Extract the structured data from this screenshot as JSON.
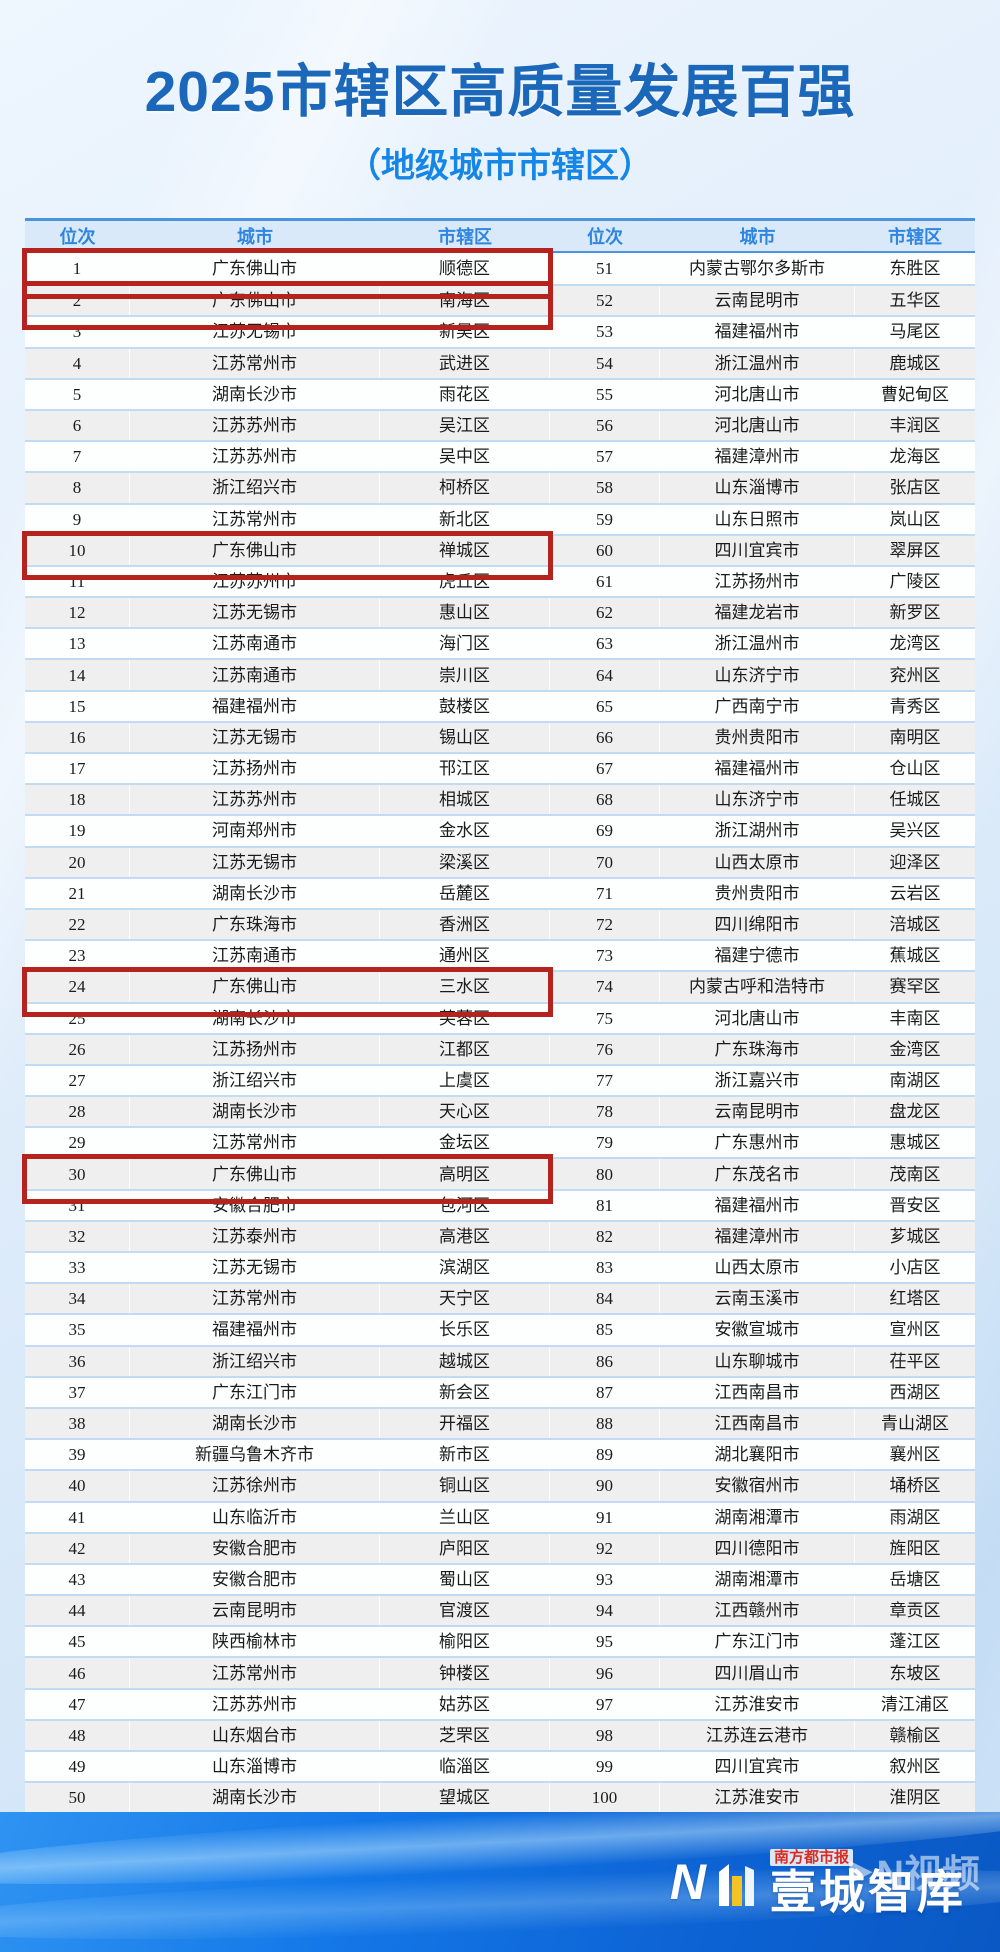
{
  "title": "2025市辖区高质量发展百强",
  "subtitle": "（地级城市市辖区）",
  "colors": {
    "title-blue": "#1b67ba",
    "subtitle-blue": "#1585e6",
    "header-bg": "#d9e9fa",
    "header-border": "#4a94dd",
    "header-text": "#2e86e0",
    "row-line": "#c2daf3",
    "row-alt": "#efefef",
    "accent-red": "#b4231d",
    "footer-blue": "#0d63d4",
    "brand-red": "#d92b1f"
  },
  "table": {
    "headers": [
      "位次",
      "城市",
      "市辖区",
      "位次",
      "城市",
      "市辖区"
    ],
    "rows": [
      {
        "rank": "1",
        "city": "广东佛山市",
        "district": "顺德区",
        "rank2": "51",
        "city2": "内蒙古鄂尔多斯市",
        "district2": "东胜区",
        "highlight": true
      },
      {
        "rank": "2",
        "city": "广东佛山市",
        "district": "南海区",
        "rank2": "52",
        "city2": "云南昆明市",
        "district2": "五华区",
        "highlight": true
      },
      {
        "rank": "3",
        "city": "江苏无锡市",
        "district": "新吴区",
        "rank2": "53",
        "city2": "福建福州市",
        "district2": "马尾区",
        "highlight": false
      },
      {
        "rank": "4",
        "city": "江苏常州市",
        "district": "武进区",
        "rank2": "54",
        "city2": "浙江温州市",
        "district2": "鹿城区",
        "highlight": false
      },
      {
        "rank": "5",
        "city": "湖南长沙市",
        "district": "雨花区",
        "rank2": "55",
        "city2": "河北唐山市",
        "district2": "曹妃甸区",
        "highlight": false
      },
      {
        "rank": "6",
        "city": "江苏苏州市",
        "district": "吴江区",
        "rank2": "56",
        "city2": "河北唐山市",
        "district2": "丰润区",
        "highlight": false
      },
      {
        "rank": "7",
        "city": "江苏苏州市",
        "district": "吴中区",
        "rank2": "57",
        "city2": "福建漳州市",
        "district2": "龙海区",
        "highlight": false
      },
      {
        "rank": "8",
        "city": "浙江绍兴市",
        "district": "柯桥区",
        "rank2": "58",
        "city2": "山东淄博市",
        "district2": "张店区",
        "highlight": false
      },
      {
        "rank": "9",
        "city": "江苏常州市",
        "district": "新北区",
        "rank2": "59",
        "city2": "山东日照市",
        "district2": "岚山区",
        "highlight": false
      },
      {
        "rank": "10",
        "city": "广东佛山市",
        "district": "禅城区",
        "rank2": "60",
        "city2": "四川宜宾市",
        "district2": "翠屏区",
        "highlight": true
      },
      {
        "rank": "11",
        "city": "江苏苏州市",
        "district": "虎丘区",
        "rank2": "61",
        "city2": "江苏扬州市",
        "district2": "广陵区",
        "highlight": false
      },
      {
        "rank": "12",
        "city": "江苏无锡市",
        "district": "惠山区",
        "rank2": "62",
        "city2": "福建龙岩市",
        "district2": "新罗区",
        "highlight": false
      },
      {
        "rank": "13",
        "city": "江苏南通市",
        "district": "海门区",
        "rank2": "63",
        "city2": "浙江温州市",
        "district2": "龙湾区",
        "highlight": false
      },
      {
        "rank": "14",
        "city": "江苏南通市",
        "district": "崇川区",
        "rank2": "64",
        "city2": "山东济宁市",
        "district2": "兖州区",
        "highlight": false
      },
      {
        "rank": "15",
        "city": "福建福州市",
        "district": "鼓楼区",
        "rank2": "65",
        "city2": "广西南宁市",
        "district2": "青秀区",
        "highlight": false
      },
      {
        "rank": "16",
        "city": "江苏无锡市",
        "district": "锡山区",
        "rank2": "66",
        "city2": "贵州贵阳市",
        "district2": "南明区",
        "highlight": false
      },
      {
        "rank": "17",
        "city": "江苏扬州市",
        "district": "邗江区",
        "rank2": "67",
        "city2": "福建福州市",
        "district2": "仓山区",
        "highlight": false
      },
      {
        "rank": "18",
        "city": "江苏苏州市",
        "district": "相城区",
        "rank2": "68",
        "city2": "山东济宁市",
        "district2": "任城区",
        "highlight": false
      },
      {
        "rank": "19",
        "city": "河南郑州市",
        "district": "金水区",
        "rank2": "69",
        "city2": "浙江湖州市",
        "district2": "吴兴区",
        "highlight": false
      },
      {
        "rank": "20",
        "city": "江苏无锡市",
        "district": "梁溪区",
        "rank2": "70",
        "city2": "山西太原市",
        "district2": "迎泽区",
        "highlight": false
      },
      {
        "rank": "21",
        "city": "湖南长沙市",
        "district": "岳麓区",
        "rank2": "71",
        "city2": "贵州贵阳市",
        "district2": "云岩区",
        "highlight": false
      },
      {
        "rank": "22",
        "city": "广东珠海市",
        "district": "香洲区",
        "rank2": "72",
        "city2": "四川绵阳市",
        "district2": "涪城区",
        "highlight": false
      },
      {
        "rank": "23",
        "city": "江苏南通市",
        "district": "通州区",
        "rank2": "73",
        "city2": "福建宁德市",
        "district2": "蕉城区",
        "highlight": false
      },
      {
        "rank": "24",
        "city": "广东佛山市",
        "district": "三水区",
        "rank2": "74",
        "city2": "内蒙古呼和浩特市",
        "district2": "赛罕区",
        "highlight": true
      },
      {
        "rank": "25",
        "city": "湖南长沙市",
        "district": "芙蓉区",
        "rank2": "75",
        "city2": "河北唐山市",
        "district2": "丰南区",
        "highlight": false
      },
      {
        "rank": "26",
        "city": "江苏扬州市",
        "district": "江都区",
        "rank2": "76",
        "city2": "广东珠海市",
        "district2": "金湾区",
        "highlight": false
      },
      {
        "rank": "27",
        "city": "浙江绍兴市",
        "district": "上虞区",
        "rank2": "77",
        "city2": "浙江嘉兴市",
        "district2": "南湖区",
        "highlight": false
      },
      {
        "rank": "28",
        "city": "湖南长沙市",
        "district": "天心区",
        "rank2": "78",
        "city2": "云南昆明市",
        "district2": "盘龙区",
        "highlight": false
      },
      {
        "rank": "29",
        "city": "江苏常州市",
        "district": "金坛区",
        "rank2": "79",
        "city2": "广东惠州市",
        "district2": "惠城区",
        "highlight": false
      },
      {
        "rank": "30",
        "city": "广东佛山市",
        "district": "高明区",
        "rank2": "80",
        "city2": "广东茂名市",
        "district2": "茂南区",
        "highlight": true
      },
      {
        "rank": "31",
        "city": "安徽合肥市",
        "district": "包河区",
        "rank2": "81",
        "city2": "福建福州市",
        "district2": "晋安区",
        "highlight": false
      },
      {
        "rank": "32",
        "city": "江苏泰州市",
        "district": "高港区",
        "rank2": "82",
        "city2": "福建漳州市",
        "district2": "芗城区",
        "highlight": false
      },
      {
        "rank": "33",
        "city": "江苏无锡市",
        "district": "滨湖区",
        "rank2": "83",
        "city2": "山西太原市",
        "district2": "小店区",
        "highlight": false
      },
      {
        "rank": "34",
        "city": "江苏常州市",
        "district": "天宁区",
        "rank2": "84",
        "city2": "云南玉溪市",
        "district2": "红塔区",
        "highlight": false
      },
      {
        "rank": "35",
        "city": "福建福州市",
        "district": "长乐区",
        "rank2": "85",
        "city2": "安徽宣城市",
        "district2": "宣州区",
        "highlight": false
      },
      {
        "rank": "36",
        "city": "浙江绍兴市",
        "district": "越城区",
        "rank2": "86",
        "city2": "山东聊城市",
        "district2": "茌平区",
        "highlight": false
      },
      {
        "rank": "37",
        "city": "广东江门市",
        "district": "新会区",
        "rank2": "87",
        "city2": "江西南昌市",
        "district2": "西湖区",
        "highlight": false
      },
      {
        "rank": "38",
        "city": "湖南长沙市",
        "district": "开福区",
        "rank2": "88",
        "city2": "江西南昌市",
        "district2": "青山湖区",
        "highlight": false
      },
      {
        "rank": "39",
        "city": "新疆乌鲁木齐市",
        "district": "新市区",
        "rank2": "89",
        "city2": "湖北襄阳市",
        "district2": "襄州区",
        "highlight": false
      },
      {
        "rank": "40",
        "city": "江苏徐州市",
        "district": "铜山区",
        "rank2": "90",
        "city2": "安徽宿州市",
        "district2": "埇桥区",
        "highlight": false
      },
      {
        "rank": "41",
        "city": "山东临沂市",
        "district": "兰山区",
        "rank2": "91",
        "city2": "湖南湘潭市",
        "district2": "雨湖区",
        "highlight": false
      },
      {
        "rank": "42",
        "city": "安徽合肥市",
        "district": "庐阳区",
        "rank2": "92",
        "city2": "四川德阳市",
        "district2": "旌阳区",
        "highlight": false
      },
      {
        "rank": "43",
        "city": "安徽合肥市",
        "district": "蜀山区",
        "rank2": "93",
        "city2": "湖南湘潭市",
        "district2": "岳塘区",
        "highlight": false
      },
      {
        "rank": "44",
        "city": "云南昆明市",
        "district": "官渡区",
        "rank2": "94",
        "city2": "江西赣州市",
        "district2": "章贡区",
        "highlight": false
      },
      {
        "rank": "45",
        "city": "陕西榆林市",
        "district": "榆阳区",
        "rank2": "95",
        "city2": "广东江门市",
        "district2": "蓬江区",
        "highlight": false
      },
      {
        "rank": "46",
        "city": "江苏常州市",
        "district": "钟楼区",
        "rank2": "96",
        "city2": "四川眉山市",
        "district2": "东坡区",
        "highlight": false
      },
      {
        "rank": "47",
        "city": "江苏苏州市",
        "district": "姑苏区",
        "rank2": "97",
        "city2": "江苏淮安市",
        "district2": "清江浦区",
        "highlight": false
      },
      {
        "rank": "48",
        "city": "山东烟台市",
        "district": "芝罘区",
        "rank2": "98",
        "city2": "江苏连云港市",
        "district2": "赣榆区",
        "highlight": false
      },
      {
        "rank": "49",
        "city": "山东淄博市",
        "district": "临淄区",
        "rank2": "99",
        "city2": "四川宜宾市",
        "district2": "叙州区",
        "highlight": false
      },
      {
        "rank": "50",
        "city": "湖南长沙市",
        "district": "望城区",
        "rank2": "100",
        "city2": "江苏淮安市",
        "district2": "淮阴区",
        "highlight": false
      }
    ]
  },
  "footer": {
    "logo_letter": "N",
    "brand_small": "南方都市报",
    "brand_large": "壹城智库",
    "watermark": "N视频"
  }
}
